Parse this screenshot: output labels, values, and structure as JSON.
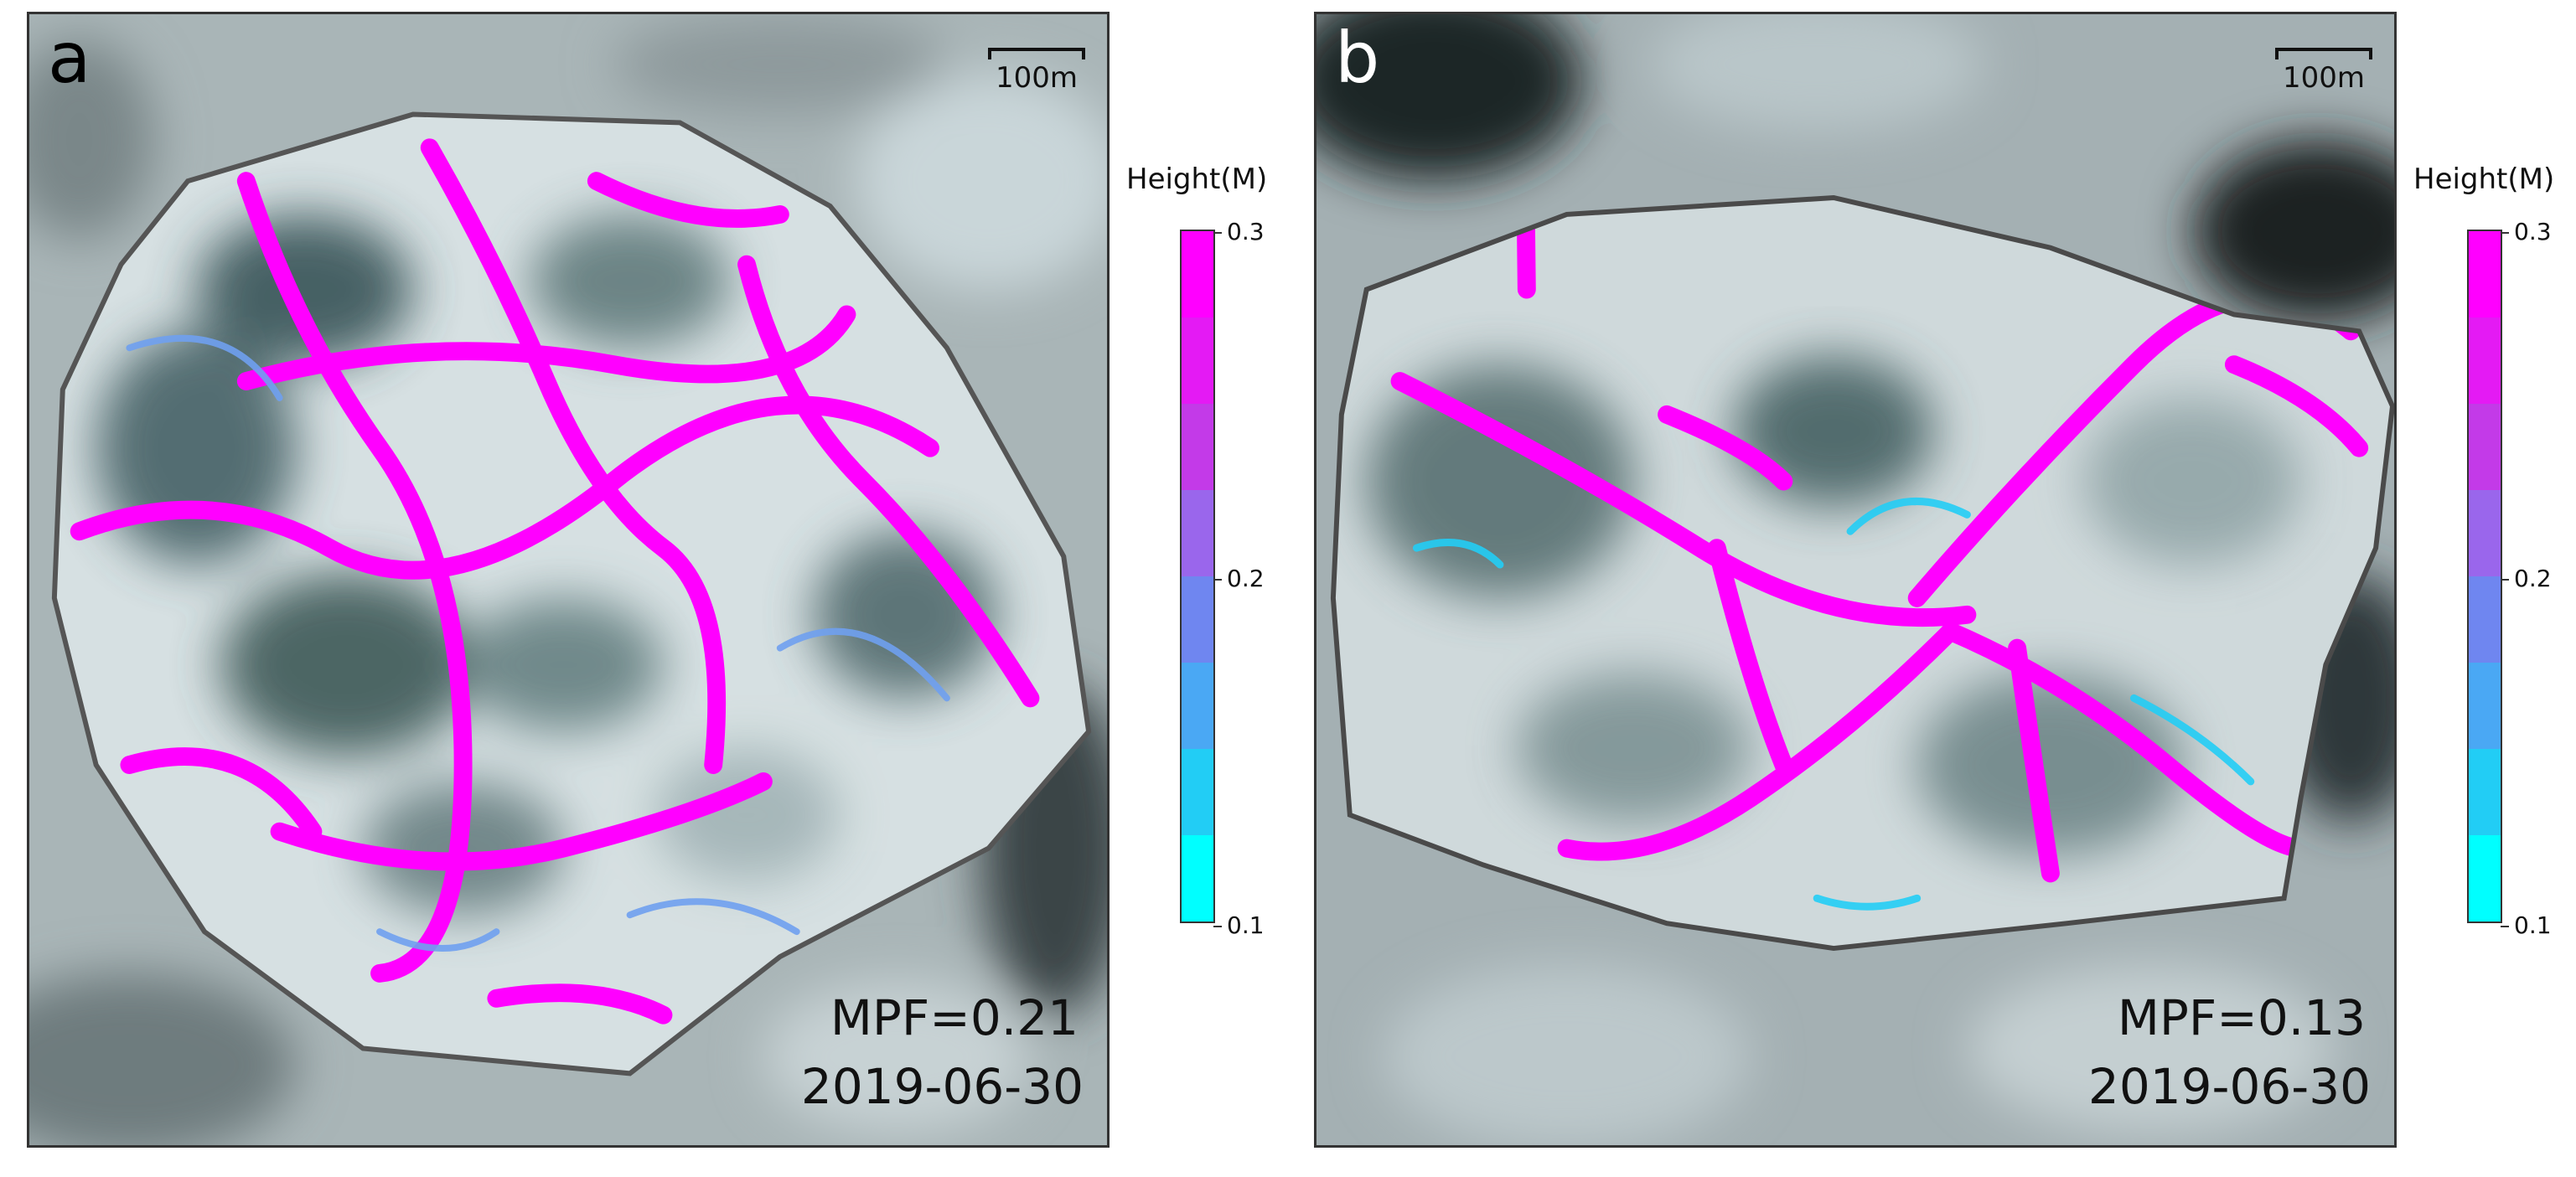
{
  "panels": [
    {
      "letter": "a",
      "scale_label": "100m",
      "mpf": "MPF=0.21",
      "date": "2019-06-30"
    },
    {
      "letter": "b",
      "scale_label": "100m",
      "mpf": "MPF=0.13",
      "date": "2019-06-30"
    }
  ],
  "colorbar": {
    "title": "Height(M)",
    "ticks": [
      "0.3",
      "0.2",
      "0.1"
    ],
    "colors": [
      "#ff00ff",
      "#00ffff"
    ]
  }
}
